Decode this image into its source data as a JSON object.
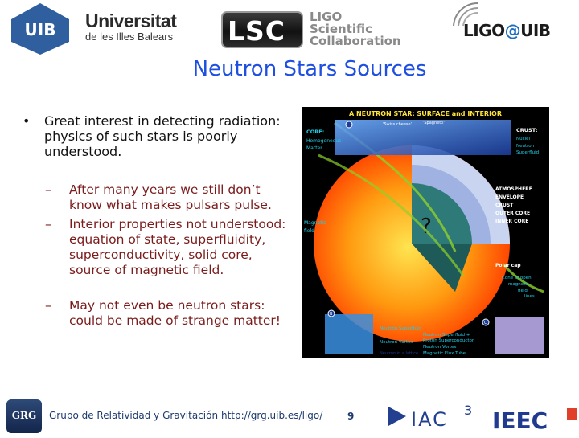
{
  "header": {
    "uib_logo_text": "UIB",
    "university_name_line1": "Universitat",
    "university_name_line2": "de les Illes Balears",
    "lsc_logo_text": "LSC",
    "lsc_name_line1": "LIGO",
    "lsc_name_line2": "Scientific",
    "lsc_name_line3": "Collaboration",
    "ligo_uib_prefix": "LIGO",
    "ligo_uib_at": "@",
    "ligo_uib_suffix": "UIB"
  },
  "slide": {
    "title": "Neutron Stars Sources",
    "bullet_marker": "•",
    "bullet": "Great interest in detecting radiation: physics of such stars is poorly understood.",
    "sub_marker": "–",
    "sub_items": [
      "After many years we still don’t know what makes pulsars pulse.",
      "Interior properties not understood: equation of state, superfluidity, superconductivity, solid core, source of magnetic field.",
      "May not even be neutron stars: could be made of strange matter!"
    ]
  },
  "figure": {
    "title": "A NEUTRON STAR: SURFACE and INTERIOR",
    "core_label": "CORE:",
    "core_desc_line1": "Homogeneous",
    "core_desc_line2": "Matter",
    "pasta_label_1": "'Swiss cheese'",
    "pasta_label_2": "'Spaghetti'",
    "crust_label": "CRUST:",
    "crust_desc_line1": "Nuclei",
    "crust_desc_line2": "Neutron",
    "crust_desc_line3": "Superfluid",
    "layers": [
      "ATMOSPHERE",
      "ENVELOPE",
      "CRUST",
      "OUTER CORE",
      "INNER CORE"
    ],
    "magnetic_field_line1": "Magnetic",
    "magnetic_field_line2": "field",
    "question_mark": "?",
    "polar_cap": "Polar cap",
    "cone_line1": "Cone of open",
    "cone_line2": "magnetic",
    "cone_line3": "field",
    "cone_line4": "lines",
    "neutron_superfluid": "Neutron Superfluid",
    "neutron_vortex": "Neutron Vortex",
    "neutron_superfluid_plus": "Neutron Superfluid +",
    "proton_superconductor": "Proton Superconductor",
    "neutron_vortex_2": "Neutron Vortex",
    "magnetic_flux_tube": "Magnetic Flux Tube",
    "neutron_lattice": "Neutron in a lattice",
    "inset_b": "B",
    "inset_c": "C",
    "colors": {
      "background": "#000000",
      "star_center": "#ffd23a",
      "star_edge": "#ff4a00",
      "wedge_outer": "#b8c9ee",
      "wedge_inner": "#2e7a78",
      "label_cyan": "#21d0e8",
      "label_yellow": "#ffe23a"
    }
  },
  "footer": {
    "grg_logo_text": "GRG",
    "group_name": "Grupo de Relatividad y Gravitación",
    "link": "http://grg.uib.es/ligo/",
    "page_number": "9",
    "iac_logo_text": "IAC",
    "iac_superscript": "3",
    "ieec_logo_text": "IEEC"
  }
}
